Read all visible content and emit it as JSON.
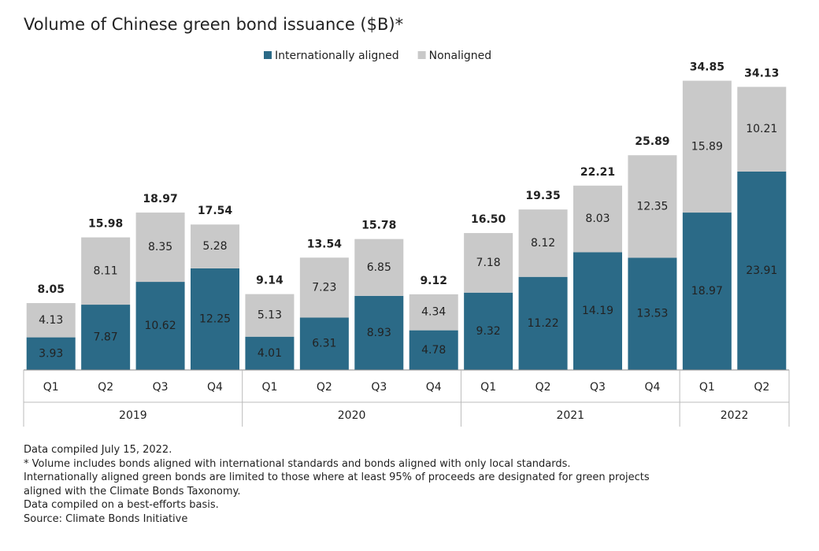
{
  "chart_data": {
    "type": "stacked-bar",
    "title": "Volume of Chinese green bond issuance ($B)*",
    "categories": [
      "Q1",
      "Q2",
      "Q3",
      "Q4",
      "Q1",
      "Q2",
      "Q3",
      "Q4",
      "Q1",
      "Q2",
      "Q3",
      "Q4",
      "Q1",
      "Q2"
    ],
    "x_groups": [
      {
        "label": "2019",
        "size": 4
      },
      {
        "label": "2020",
        "size": 4
      },
      {
        "label": "2021",
        "size": 4
      },
      {
        "label": "2022",
        "size": 2
      }
    ],
    "series": [
      {
        "name": "Internationally aligned",
        "color": "#2b6a87",
        "label_color": "#ffffff",
        "values": [
          3.93,
          7.87,
          10.62,
          12.25,
          4.01,
          6.31,
          8.93,
          4.78,
          9.32,
          11.22,
          14.19,
          13.53,
          18.97,
          23.91
        ]
      },
      {
        "name": "Nonaligned",
        "color": "#c9c9c9",
        "label_color": "#222222",
        "values": [
          4.13,
          8.11,
          8.35,
          5.28,
          5.13,
          7.23,
          6.85,
          4.34,
          7.18,
          8.12,
          8.03,
          12.35,
          15.89,
          10.21
        ]
      }
    ],
    "totals": {
      "values": [
        8.05,
        15.98,
        18.97,
        17.54,
        9.14,
        13.54,
        15.78,
        9.12,
        16.5,
        19.35,
        22.21,
        25.89,
        34.85,
        34.13
      ],
      "value_labels": [
        "8.05",
        "15.98",
        "18.97",
        "17.54",
        "9.14",
        "13.54",
        "15.78",
        "9.12",
        "16.50",
        "19.35",
        "22.21",
        "25.89",
        "34.85",
        "34.13"
      ]
    },
    "ylim": [
      0,
      37
    ],
    "legend": "top",
    "notes": [
      "Data compiled July 15, 2022.",
      "* Volume includes bonds aligned with international standards and bonds aligned with only local standards.",
      "Internationally aligned green bonds are limited to those where at least 95% of proceeds are designated for green projects",
      "aligned with the Climate Bonds Taxonomy.",
      "Data compiled on a best-efforts basis.",
      "Source: Climate Bonds Initiative"
    ]
  }
}
